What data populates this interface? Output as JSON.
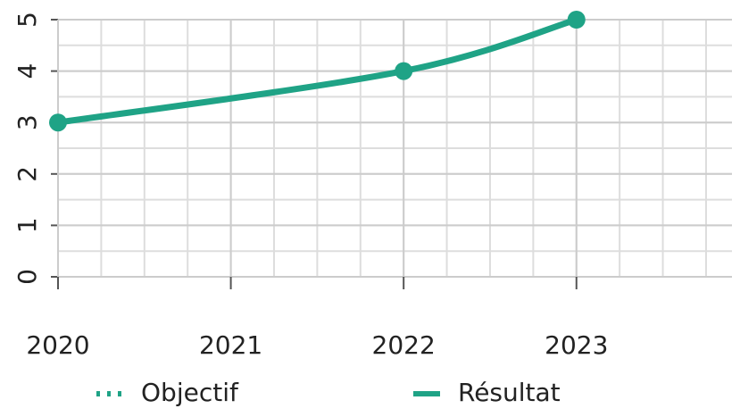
{
  "chart_data": {
    "type": "line",
    "x": [
      2020,
      2022,
      2023
    ],
    "xlim": [
      2020,
      2023.9
    ],
    "xticks": [
      2020,
      2021,
      2022,
      2023
    ],
    "ylim": [
      0,
      5
    ],
    "yticks": [
      0,
      1,
      2,
      3,
      4,
      5
    ],
    "grid": true,
    "series": [
      {
        "name": "Objectif",
        "color": "#1fa386",
        "style": "dotted",
        "values": [
          null,
          null,
          null
        ]
      },
      {
        "name": "Résultat",
        "color": "#1fa386",
        "style": "solid",
        "values": [
          3,
          4,
          5
        ]
      }
    ]
  }
}
